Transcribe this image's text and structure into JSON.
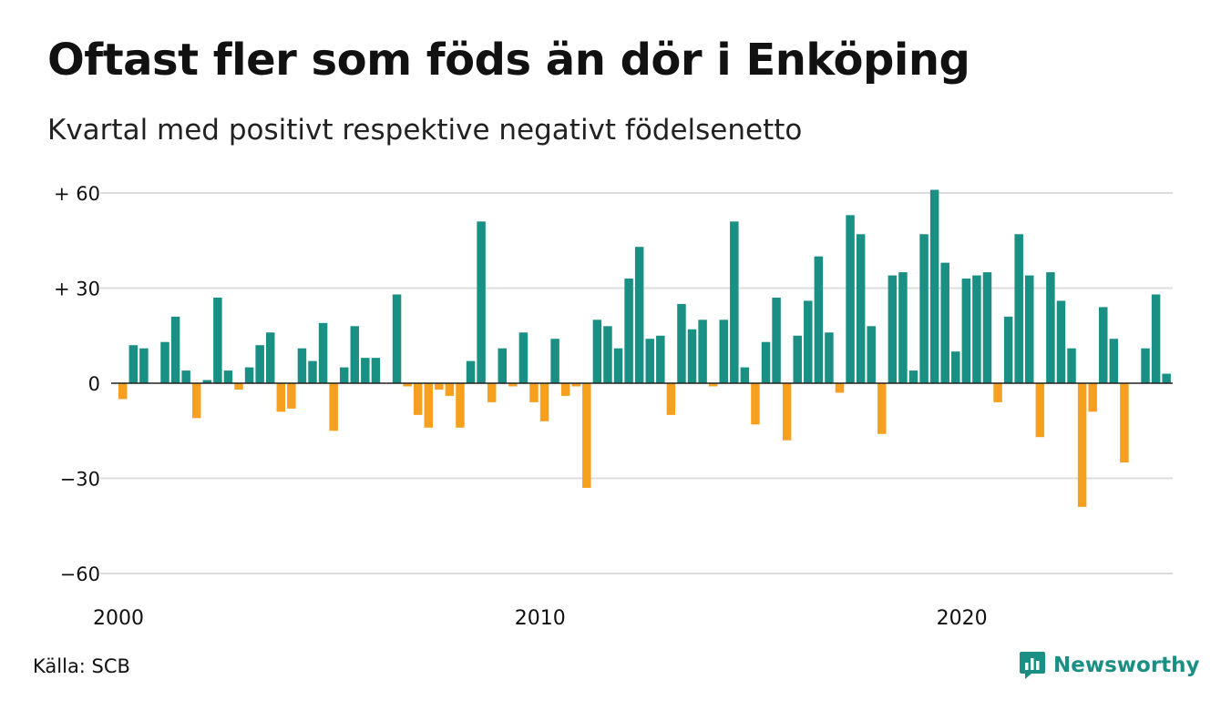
{
  "title": "Oftast fler som föds än dör i Enköping",
  "subtitle": "Kvartal med positivt respektive negativt födelsenetto",
  "source": "Källa: SCB",
  "brand": {
    "name": "Newsworthy",
    "icon": "newsworthy-logo-icon"
  },
  "colors": {
    "positive": "#1a8f84",
    "negative": "#f5a01f",
    "grid": "#dddddd",
    "axis": "#222222"
  },
  "chart_data": {
    "type": "bar",
    "title": "Oftast fler som föds än dör i Enköping",
    "subtitle": "Kvartal med positivt respektive negativt födelsenetto",
    "xlabel": "",
    "ylabel": "",
    "x_tick_labels": [
      {
        "label": "2000",
        "index": 0
      },
      {
        "label": "2010",
        "index": 40
      },
      {
        "label": "2020",
        "index": 80
      }
    ],
    "y_ticks": [
      60,
      30,
      0,
      -30,
      -60
    ],
    "y_tick_labels": [
      "+ 60",
      "+ 30",
      "0",
      "−30",
      "−60"
    ],
    "ylim": [
      -60,
      62
    ],
    "grid": true,
    "legend": "none",
    "start_period": "2000 Q1",
    "values": [
      -5,
      12,
      11,
      0,
      13,
      21,
      4,
      -11,
      1,
      27,
      4,
      -2,
      5,
      12,
      16,
      -9,
      -8,
      11,
      7,
      19,
      -15,
      5,
      18,
      8,
      8,
      0,
      28,
      -1,
      -10,
      -14,
      -2,
      -4,
      -14,
      7,
      51,
      -6,
      11,
      -1,
      16,
      -6,
      -12,
      14,
      -4,
      -1,
      -33,
      20,
      18,
      11,
      33,
      43,
      14,
      15,
      -10,
      25,
      17,
      20,
      -1,
      20,
      51,
      5,
      -13,
      13,
      27,
      -18,
      15,
      26,
      40,
      16,
      -3,
      53,
      47,
      18,
      -16,
      34,
      35,
      4,
      47,
      61,
      38,
      10,
      33,
      34,
      35,
      -6,
      21,
      47,
      34,
      -17,
      35,
      26,
      11,
      -39,
      -9,
      24,
      14,
      -25,
      0,
      11,
      28,
      3
    ]
  }
}
